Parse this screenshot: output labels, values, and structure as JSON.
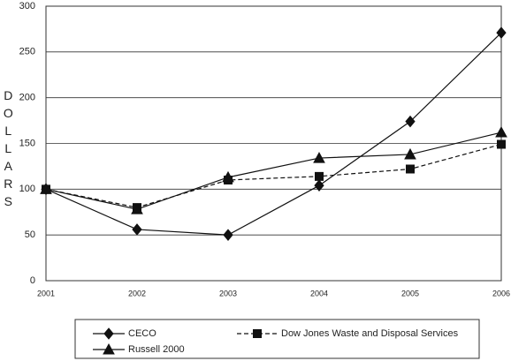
{
  "chart_data": {
    "type": "line",
    "y_label": "DOLLARS",
    "categories": [
      "2001",
      "2002",
      "2003",
      "2004",
      "2005",
      "2006"
    ],
    "series": [
      {
        "name": "CECO",
        "color": "#111111",
        "marker": "diamond",
        "dash": false,
        "values": [
          100,
          56,
          50,
          104,
          174,
          271
        ]
      },
      {
        "name": "Dow Jones Waste and Disposal Services",
        "color": "#111111",
        "marker": "square",
        "dash": true,
        "values": [
          100,
          80,
          110,
          114,
          122,
          149
        ]
      },
      {
        "name": "Russell 2000",
        "color": "#111111",
        "marker": "triangle",
        "dash": false,
        "values": [
          100,
          78,
          113,
          134,
          138,
          162
        ]
      }
    ],
    "ylim": [
      0,
      300
    ],
    "yticks": [
      0,
      50,
      100,
      150,
      200,
      250,
      300
    ],
    "grid": true,
    "legend": "bottom"
  }
}
